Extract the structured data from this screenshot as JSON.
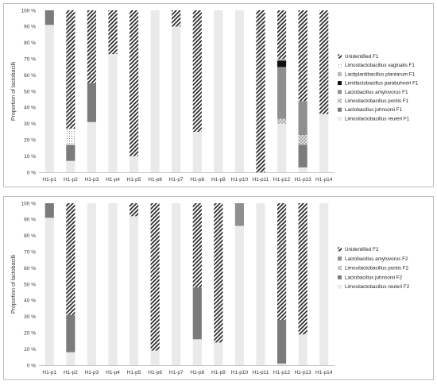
{
  "chart_data": [
    {
      "type": "bar",
      "stacked": true,
      "ylabel": "Proportion of lactobacilli",
      "ylim": [
        0,
        100
      ],
      "yticks": [
        "0 %",
        "10 %",
        "20 %",
        "30 %",
        "40 %",
        "50 %",
        "60 %",
        "70 %",
        "80 %",
        "90 %",
        "100 %"
      ],
      "categories": [
        "H1-p1",
        "H1-p2",
        "H1-p3",
        "H1-p4",
        "H1-p5",
        "H1-p6",
        "H1-p7",
        "H1-p8",
        "H1-p9",
        "H1-p10",
        "H1-p11",
        "H1-p12",
        "H1-p13",
        "H1-p14"
      ],
      "legend_position": "right",
      "series": [
        {
          "name": "Limosilactobacillus reuteri F1",
          "pattern": "light",
          "values": [
            91,
            7,
            31,
            73,
            10,
            100,
            90,
            25,
            100,
            100,
            0,
            30,
            3,
            36
          ]
        },
        {
          "name": "Lactobacillus johnsonii F1",
          "pattern": "dark",
          "values": [
            9,
            10,
            24,
            0,
            0,
            0,
            0,
            0,
            0,
            0,
            0,
            0,
            14,
            0
          ]
        },
        {
          "name": "Limosilactobacillus pontis F1",
          "pattern": "crosshatch",
          "values": [
            0,
            0,
            0,
            0,
            0,
            0,
            0,
            0,
            0,
            0,
            0,
            3,
            6,
            0
          ]
        },
        {
          "name": "Lactobacillus amylovorus F1",
          "pattern": "medium",
          "values": [
            0,
            0,
            0,
            0,
            0,
            0,
            0,
            0,
            0,
            0,
            0,
            32,
            21,
            0
          ]
        },
        {
          "name": "Lentilactobacillus parabuhneri F1",
          "pattern": "black",
          "values": [
            0,
            0,
            0,
            0,
            0,
            0,
            0,
            0,
            0,
            0,
            0,
            4,
            0,
            0
          ]
        },
        {
          "name": "Lactiplantibacillus plantarum F1",
          "pattern": "small-hatch",
          "values": [
            0,
            0,
            0,
            0,
            0,
            0,
            0,
            0,
            0,
            0,
            0,
            1,
            0,
            0
          ]
        },
        {
          "name": "Limosilactobacillus vaginalis F1",
          "pattern": "dots",
          "values": [
            0,
            10,
            0,
            0,
            0,
            0,
            0,
            0,
            0,
            0,
            0,
            0,
            0,
            0
          ]
        },
        {
          "name": "Unidentified F1",
          "pattern": "hatch",
          "values": [
            0,
            73,
            45,
            27,
            90,
            0,
            10,
            75,
            0,
            0,
            100,
            30,
            56,
            64
          ]
        }
      ]
    },
    {
      "type": "bar",
      "stacked": true,
      "ylabel": "Proportion of lactobacilli",
      "ylim": [
        0,
        100
      ],
      "yticks": [
        "0 %",
        "10 %",
        "20 %",
        "30 %",
        "40 %",
        "50 %",
        "60 %",
        "70 %",
        "80 %",
        "90 %",
        "100 %"
      ],
      "categories": [
        "H1-p1",
        "H1-p2",
        "H1-p3",
        "H1-p4",
        "H1-p5",
        "H1-p6",
        "H1-p7",
        "H1-p8",
        "H1-p9",
        "H1-p10",
        "H1-p11",
        "H1-p12",
        "H1-p13",
        "H1-p14"
      ],
      "legend_position": "right",
      "series": [
        {
          "name": "Limosilactobacillus reuteri F2",
          "pattern": "light",
          "values": [
            91,
            8,
            100,
            100,
            92,
            9,
            100,
            16,
            14,
            86,
            100,
            1,
            19,
            100
          ]
        },
        {
          "name": "Lactobacillus johnsonii F2",
          "pattern": "dark",
          "values": [
            9,
            23,
            0,
            0,
            0,
            0,
            0,
            32,
            0,
            0,
            0,
            27,
            0,
            0
          ]
        },
        {
          "name": "Limosilactobacillus pontis F2",
          "pattern": "crosshatch",
          "values": [
            0,
            0,
            0,
            0,
            0,
            0,
            0,
            0,
            0,
            0,
            0,
            0,
            0,
            0
          ]
        },
        {
          "name": "Lactobacillus amylovorus F2",
          "pattern": "medium",
          "values": [
            0,
            0,
            0,
            0,
            0,
            0,
            0,
            0,
            0,
            14,
            0,
            0,
            0,
            0
          ]
        },
        {
          "name": "Unidentified F2",
          "pattern": "hatch",
          "values": [
            0,
            69,
            0,
            0,
            8,
            91,
            0,
            52,
            86,
            0,
            0,
            72,
            81,
            0
          ]
        }
      ]
    }
  ]
}
